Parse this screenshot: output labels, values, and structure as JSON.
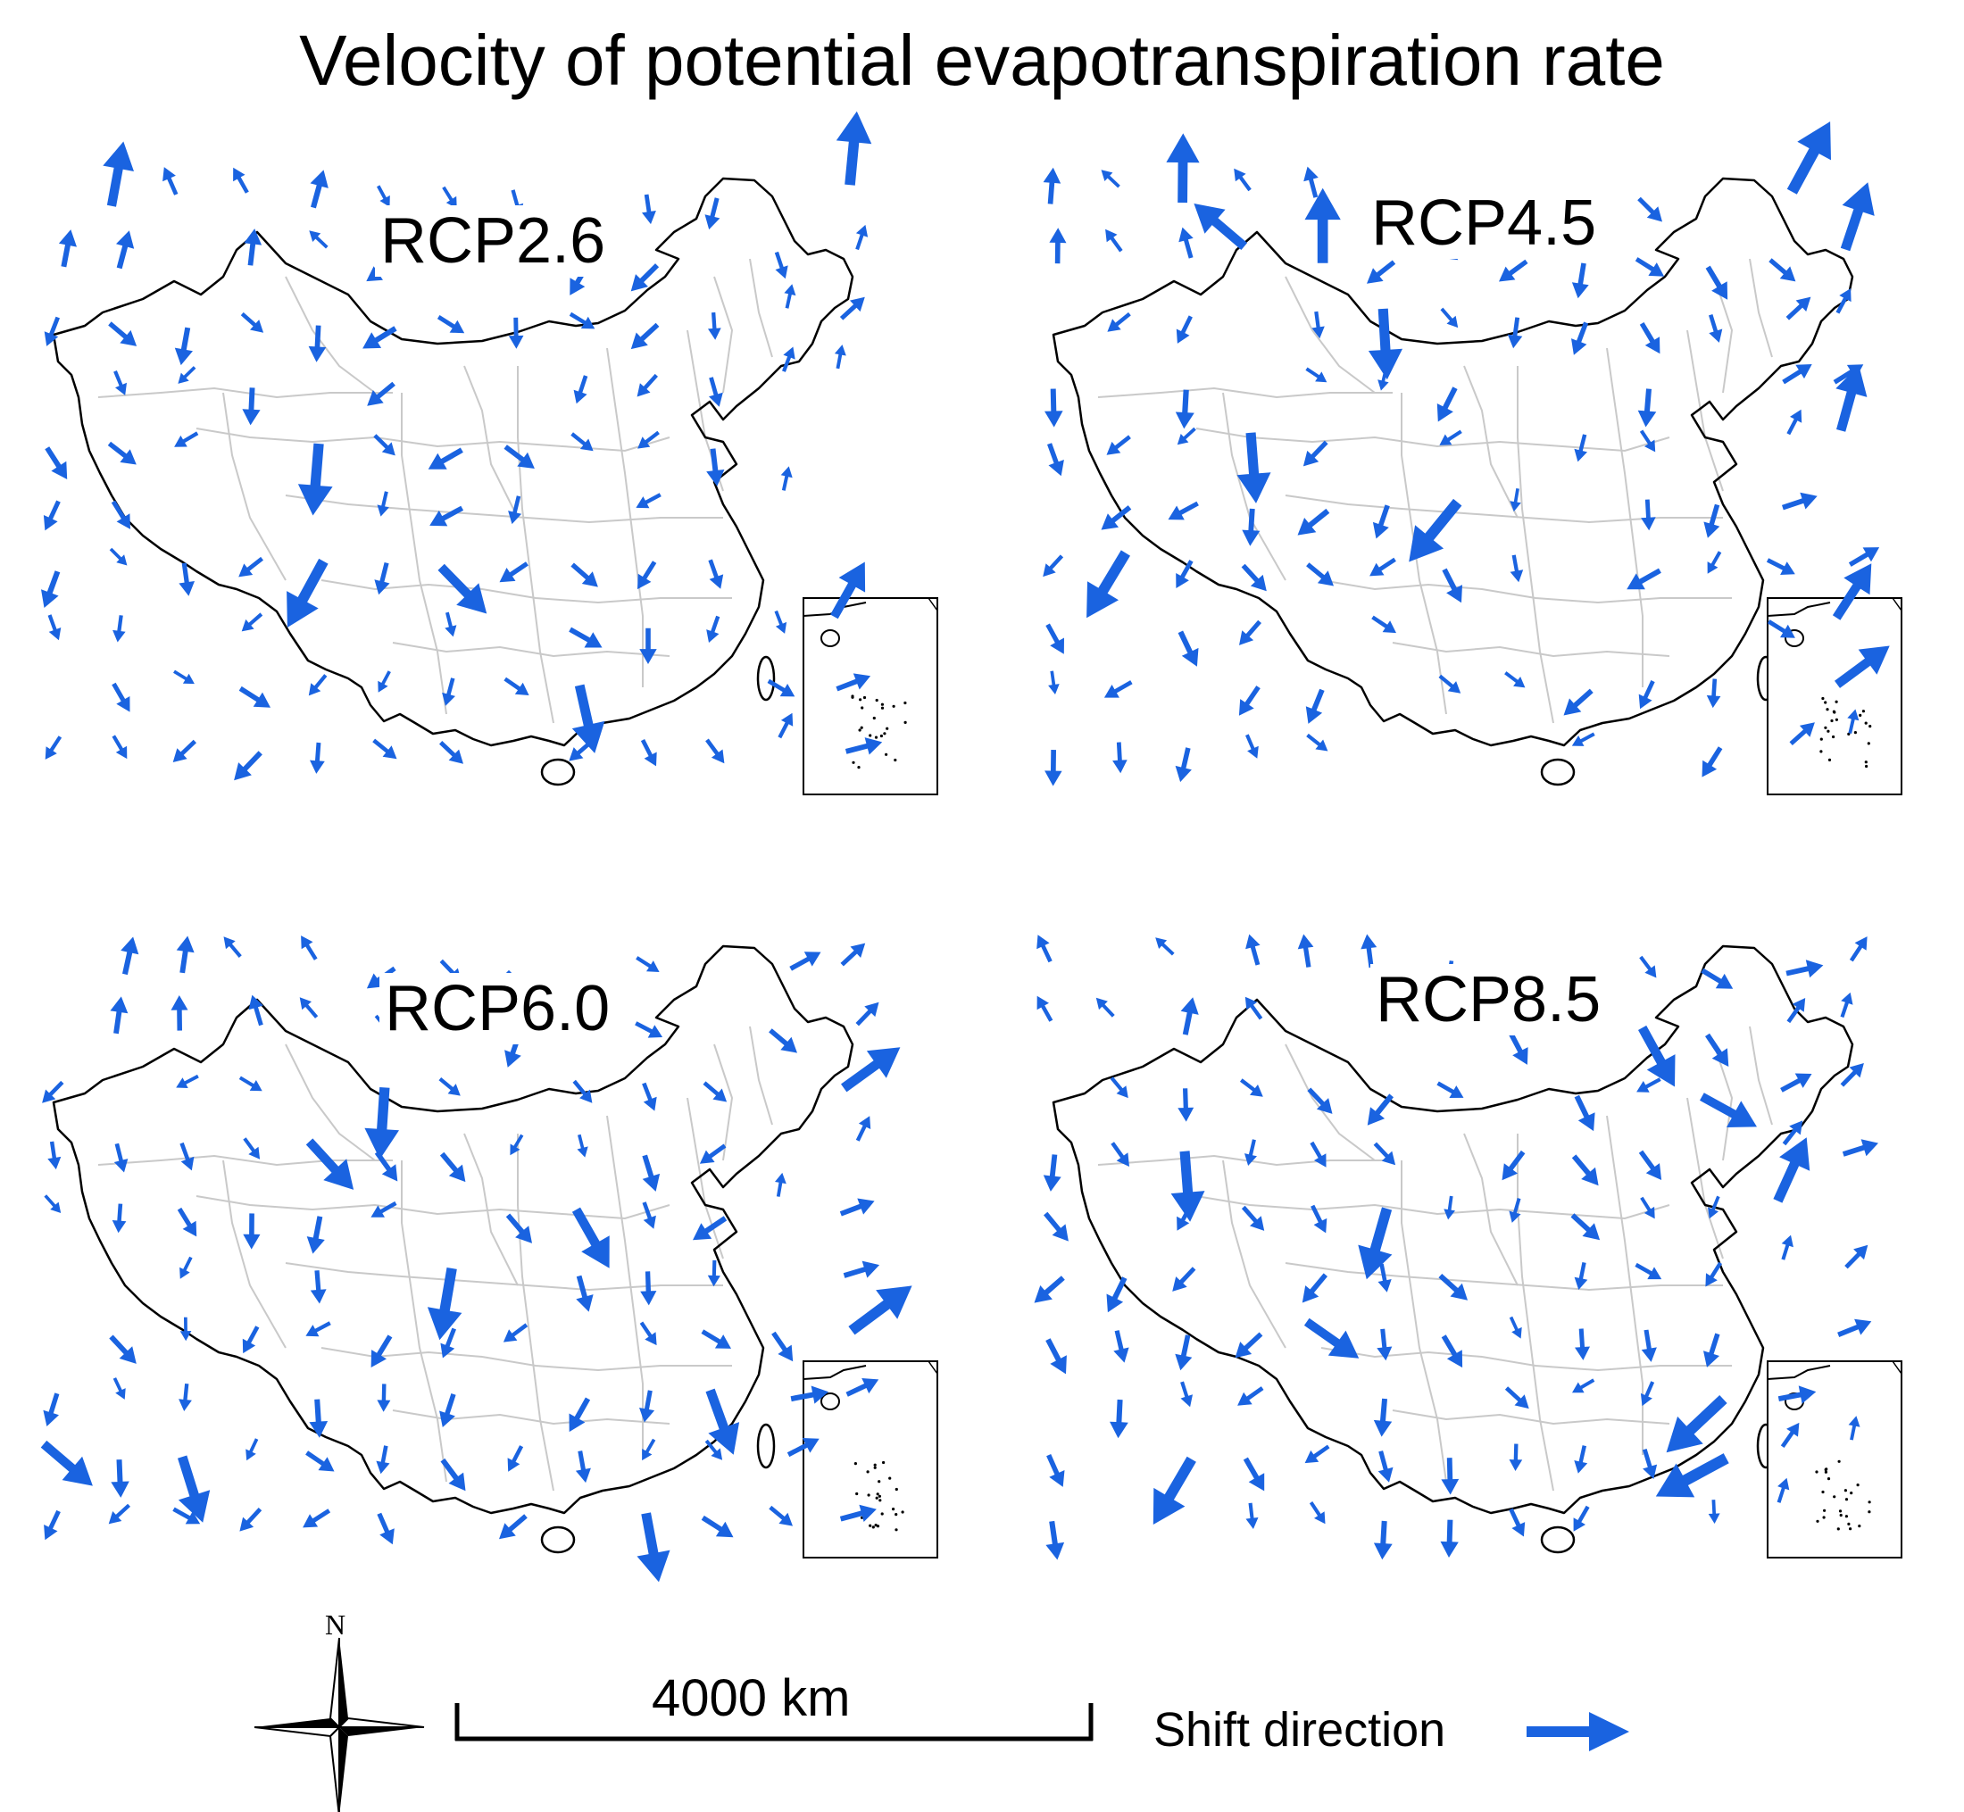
{
  "title": "Velocity of potential evapotranspiration rate",
  "panels": [
    {
      "label": "RCP2.6"
    },
    {
      "label": "RCP4.5"
    },
    {
      "label": "RCP6.0"
    },
    {
      "label": "RCP8.5"
    }
  ],
  "compass": {
    "north_label": "N"
  },
  "scale_bar": {
    "label": "4000 km"
  },
  "legend": {
    "label": "Shift direction",
    "arrow_color": "#1a63e0"
  },
  "colors": {
    "arrow": "#1a63e0",
    "boundary": "#000000",
    "province_lines": "#c9c9c9"
  }
}
